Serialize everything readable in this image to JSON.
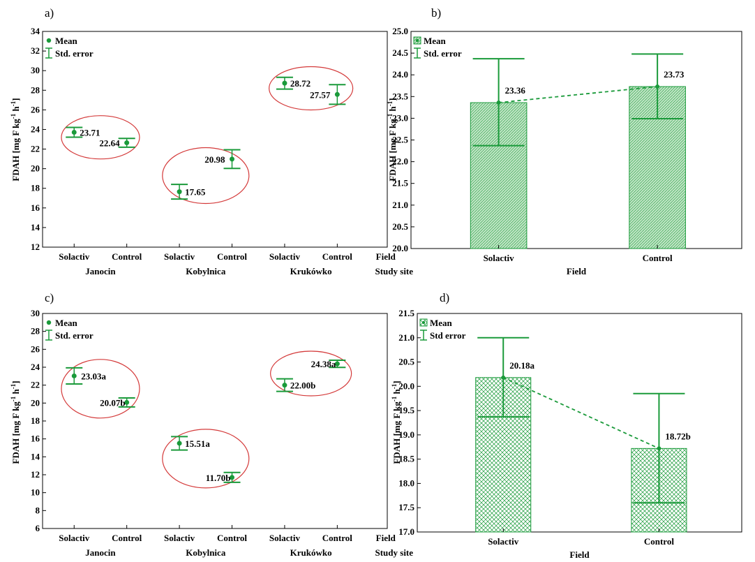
{
  "colors": {
    "green": "#1a9a3a",
    "bar_fill": "#b8e0bd",
    "ellipse": "#d43a3a",
    "axis": "#000000"
  },
  "chart_data": [
    {
      "panel": "a)",
      "type": "scatter",
      "ylabel": "FDAH [mg F kg-1 h-1]",
      "ylim": [
        12,
        34
      ],
      "yticks": [
        12,
        14,
        16,
        18,
        20,
        22,
        24,
        26,
        28,
        30,
        32,
        34
      ],
      "legend": [
        "Mean",
        "Std. error"
      ],
      "field_label": "Field",
      "site_label": "Study site",
      "categories": [
        "Solactiv",
        "Control",
        "Solactiv",
        "Control",
        "Solactiv",
        "Control"
      ],
      "sites": [
        "Janocin",
        "Kobylnica",
        "Krukówko"
      ],
      "values": [
        23.71,
        22.64,
        17.65,
        20.98,
        28.72,
        27.57
      ],
      "errors": [
        0.5,
        0.45,
        0.75,
        0.95,
        0.6,
        1.0
      ],
      "labels": [
        "23.71",
        "22.64",
        "17.65",
        "20.98",
        "28.72",
        "27.57"
      ]
    },
    {
      "panel": "b)",
      "type": "bar",
      "ylabel": "FDAH [mg F kg-1 h-1]",
      "xlabel": "Field",
      "ylim": [
        20.0,
        25.0
      ],
      "yticks": [
        "20.0",
        "20.5",
        "21.0",
        "21.5",
        "22.0",
        "22.5",
        "23.0",
        "23.5",
        "24.0",
        "24.5",
        "25.0"
      ],
      "legend": [
        "Mean",
        "Std. error"
      ],
      "categories": [
        "Solactiv",
        "Control"
      ],
      "values": [
        23.36,
        23.73
      ],
      "err_low": [
        22.37,
        22.99
      ],
      "err_high": [
        24.37,
        24.48
      ],
      "labels": [
        "23.36",
        "23.73"
      ]
    },
    {
      "panel": "c)",
      "type": "scatter",
      "ylabel": "FDAH [mg F kg-1 h-1]",
      "ylim": [
        6,
        30
      ],
      "yticks": [
        6,
        8,
        10,
        12,
        14,
        16,
        18,
        20,
        22,
        24,
        26,
        28,
        30
      ],
      "legend": [
        "Mean",
        "Std. error"
      ],
      "field_label": "Field",
      "site_label": "Study site",
      "categories": [
        "Solactiv",
        "Control",
        "Solactiv",
        "Control",
        "Solactiv",
        "Control"
      ],
      "sites": [
        "Janocin",
        "Kobylnica",
        "Krukówko"
      ],
      "values": [
        23.03,
        20.07,
        15.51,
        11.7,
        22.0,
        24.38
      ],
      "errors": [
        0.9,
        0.5,
        0.75,
        0.55,
        0.7,
        0.4
      ],
      "labels": [
        "23.03a",
        "20.07b",
        "15.51a",
        "11.70b",
        "22.00b",
        "24.38a"
      ]
    },
    {
      "panel": "d)",
      "type": "bar",
      "ylabel": "FDAH [mg F kg-1 h-1]",
      "xlabel": "Field",
      "ylim": [
        17.0,
        21.5
      ],
      "yticks": [
        "17.0",
        "17.5",
        "18.0",
        "18.5",
        "19.0",
        "19.5",
        "20.0",
        "20.5",
        "21.0",
        "21.5"
      ],
      "legend": [
        "Mean",
        "Std error"
      ],
      "categories": [
        "Solactiv",
        "Control"
      ],
      "values": [
        20.18,
        18.72
      ],
      "err_low": [
        19.37,
        17.6
      ],
      "err_high": [
        21.0,
        19.85
      ],
      "labels": [
        "20.18a",
        "18.72b"
      ]
    }
  ]
}
